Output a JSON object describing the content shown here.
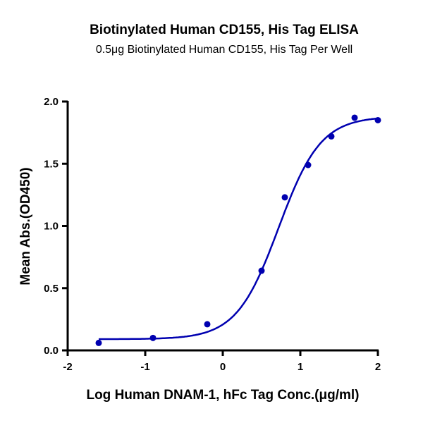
{
  "chart_data": {
    "type": "scatter",
    "title": "Biotinylated Human CD155, His Tag ELISA",
    "subtitle": "0.5μg Biotinylated Human CD155, His Tag Per Well",
    "xlabel": "Log Human DNAM-1, hFc Tag Conc.(μg/ml)",
    "ylabel": "Mean Abs.(OD450)",
    "xlim": [
      -2,
      2
    ],
    "ylim": [
      0,
      2.0
    ],
    "xticks": [
      "-2",
      "-1",
      "0",
      "1",
      "2"
    ],
    "yticks": [
      "0.0",
      "0.5",
      "1.0",
      "1.5",
      "2.0"
    ],
    "grid": false,
    "color": "#0000b0",
    "points": {
      "x": [
        -1.6,
        -0.9,
        -0.2,
        0.5,
        0.8,
        1.1,
        1.4,
        1.7,
        2.0
      ],
      "y": [
        0.06,
        0.1,
        0.21,
        0.64,
        1.23,
        1.49,
        1.72,
        1.87,
        1.85
      ]
    },
    "fit": {
      "model": "4PL",
      "bottom": 0.09,
      "top": 1.88,
      "logEC50": 0.72,
      "hill": 1.6,
      "xrange": [
        -1.6,
        2.0
      ]
    }
  }
}
